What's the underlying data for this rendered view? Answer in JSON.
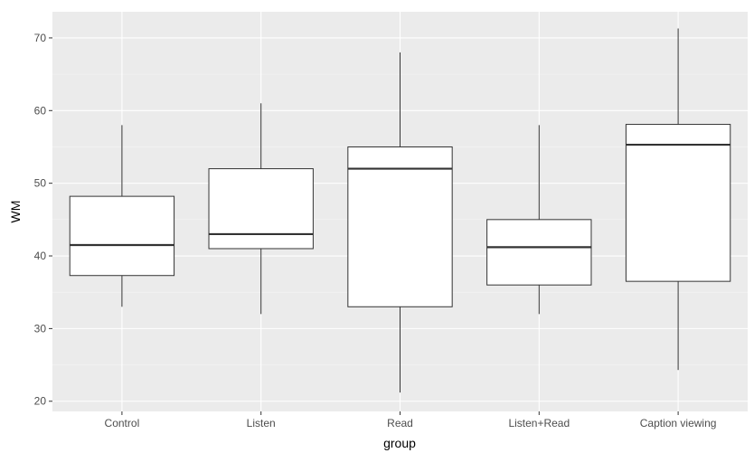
{
  "chart_data": {
    "type": "box",
    "xlabel": "group",
    "ylabel": "WM",
    "ylim": [
      18.6,
      73.6
    ],
    "y_ticks": [
      20,
      30,
      40,
      50,
      60,
      70
    ],
    "grid": true,
    "categories": [
      "Control",
      "Listen",
      "Read",
      "Listen+Read",
      "Caption viewing"
    ],
    "boxes": [
      {
        "group": "Control",
        "min": 33,
        "q1": 37.3,
        "median": 41.5,
        "q3": 48.2,
        "max": 58
      },
      {
        "group": "Listen",
        "min": 32,
        "q1": 41,
        "median": 43,
        "q3": 52,
        "max": 61
      },
      {
        "group": "Read",
        "min": 21.2,
        "q1": 33,
        "median": 52,
        "q3": 55,
        "max": 68
      },
      {
        "group": "Listen+Read",
        "min": 32,
        "q1": 36,
        "median": 41.2,
        "q3": 45,
        "max": 58
      },
      {
        "group": "Caption viewing",
        "min": 24.3,
        "q1": 36.5,
        "median": 55.3,
        "q3": 58.1,
        "max": 71.3
      }
    ],
    "colors": {
      "panel_background": "#ebebeb",
      "grid_major": "#ffffff",
      "grid_minor": "#f5f5f5",
      "box_fill": "#ffffff",
      "box_line": "#333333"
    }
  }
}
